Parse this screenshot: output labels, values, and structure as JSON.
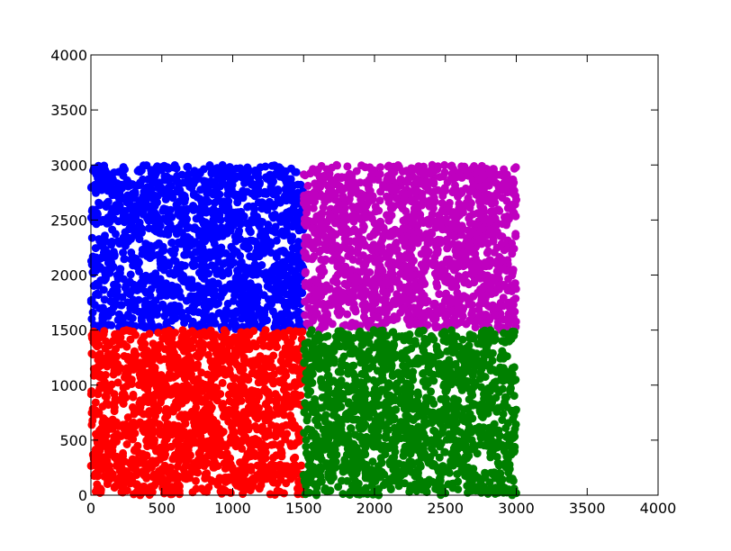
{
  "chart_data": {
    "type": "scatter",
    "title": "",
    "xlabel": "",
    "ylabel": "",
    "xlim": [
      0,
      4000
    ],
    "ylim": [
      0,
      4000
    ],
    "x_ticks": [
      0,
      500,
      1000,
      1500,
      2000,
      2500,
      3000,
      3500,
      4000
    ],
    "y_ticks": [
      0,
      500,
      1000,
      1500,
      2000,
      2500,
      3000,
      3500,
      4000
    ],
    "x_tick_labels": [
      "0",
      "500",
      "1000",
      "1500",
      "2000",
      "2500",
      "3000",
      "3500",
      "4000"
    ],
    "y_tick_labels": [
      "0",
      "500",
      "1000",
      "1500",
      "2000",
      "2500",
      "3000",
      "3500",
      "4000"
    ],
    "grid": false,
    "legend": "none",
    "series": [
      {
        "color": "#0000ff",
        "x_range": [
          0,
          1500
        ],
        "y_range": [
          1500,
          3000
        ],
        "points": 1500
      },
      {
        "color": "#bf00bf",
        "x_range": [
          1500,
          3000
        ],
        "y_range": [
          1500,
          3000
        ],
        "points": 1500
      },
      {
        "color": "#ff0000",
        "x_range": [
          0,
          1500
        ],
        "y_range": [
          0,
          1500
        ],
        "points": 1500
      },
      {
        "color": "#008000",
        "x_range": [
          1500,
          3000
        ],
        "y_range": [
          0,
          1500
        ],
        "points": 1500
      }
    ]
  }
}
